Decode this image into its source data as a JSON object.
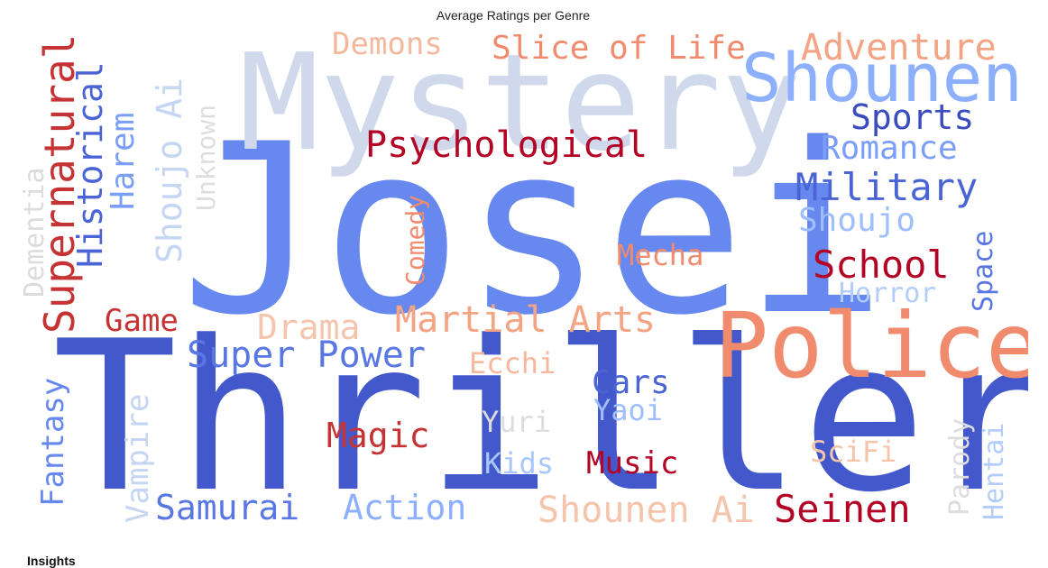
{
  "chart_data": {
    "type": "wordcloud",
    "title": "Average Ratings per Genre",
    "colormap": "coolwarm",
    "words": [
      {
        "text": "Josei",
        "color": "#6788ee"
      },
      {
        "text": "Thriller",
        "color": "#4358cb"
      },
      {
        "text": "Mystery",
        "color": "#d0d9eb"
      },
      {
        "text": "Police",
        "color": "#f08b6e"
      },
      {
        "text": "Shounen",
        "color": "#8caffe"
      },
      {
        "text": "Adventure",
        "color": "#f4a383"
      },
      {
        "text": "Slice of Life",
        "color": "#f08b6e"
      },
      {
        "text": "Demons",
        "color": "#f4b89c"
      },
      {
        "text": "Psychological",
        "color": "#b40426"
      },
      {
        "text": "Sports",
        "color": "#3b4cc0"
      },
      {
        "text": "Romance",
        "color": "#7b9ff9"
      },
      {
        "text": "Military",
        "color": "#4b64d5"
      },
      {
        "text": "Shoujo",
        "color": "#9ebeff"
      },
      {
        "text": "School",
        "color": "#b40426"
      },
      {
        "text": "Horror",
        "color": "#b2ccfb"
      },
      {
        "text": "Space",
        "color": "#5977e3"
      },
      {
        "text": "Mecha",
        "color": "#f08b6e"
      },
      {
        "text": "Comedy",
        "color": "#f08b6e"
      },
      {
        "text": "Supernatural",
        "color": "#c53334"
      },
      {
        "text": "Historical",
        "color": "#4b64d5"
      },
      {
        "text": "Harem",
        "color": "#7b9ff9"
      },
      {
        "text": "Shoujo Ai",
        "color": "#c5d6f2"
      },
      {
        "text": "Unknown",
        "color": "#dcdddd"
      },
      {
        "text": "Dementia",
        "color": "#dddcdc"
      },
      {
        "text": "Game",
        "color": "#c53334"
      },
      {
        "text": "Drama",
        "color": "#f5c4ac"
      },
      {
        "text": "Martial Arts",
        "color": "#f4a383"
      },
      {
        "text": "Super Power",
        "color": "#5977e3"
      },
      {
        "text": "Ecchi",
        "color": "#f5b89c"
      },
      {
        "text": "Cars",
        "color": "#4b64d5"
      },
      {
        "text": "Yaoi",
        "color": "#9ebeff"
      },
      {
        "text": "Yuri",
        "color": "#dcdddd"
      },
      {
        "text": "Magic",
        "color": "#c53334"
      },
      {
        "text": "Kids",
        "color": "#a9c6fd"
      },
      {
        "text": "Music",
        "color": "#b40426"
      },
      {
        "text": "SciFi",
        "color": "#f5c4ac"
      },
      {
        "text": "Parody",
        "color": "#dcdddd"
      },
      {
        "text": "Hentai",
        "color": "#b2ccfb"
      },
      {
        "text": "Fantasy",
        "color": "#6788ee"
      },
      {
        "text": "Vampire",
        "color": "#c5d6f2"
      },
      {
        "text": "Samurai",
        "color": "#5977e3"
      },
      {
        "text": "Action",
        "color": "#8caffe"
      },
      {
        "text": "Shounen Ai",
        "color": "#f5c4ac"
      },
      {
        "text": "Seinen",
        "color": "#b40426"
      }
    ]
  },
  "insights": {
    "heading": "Insights"
  }
}
